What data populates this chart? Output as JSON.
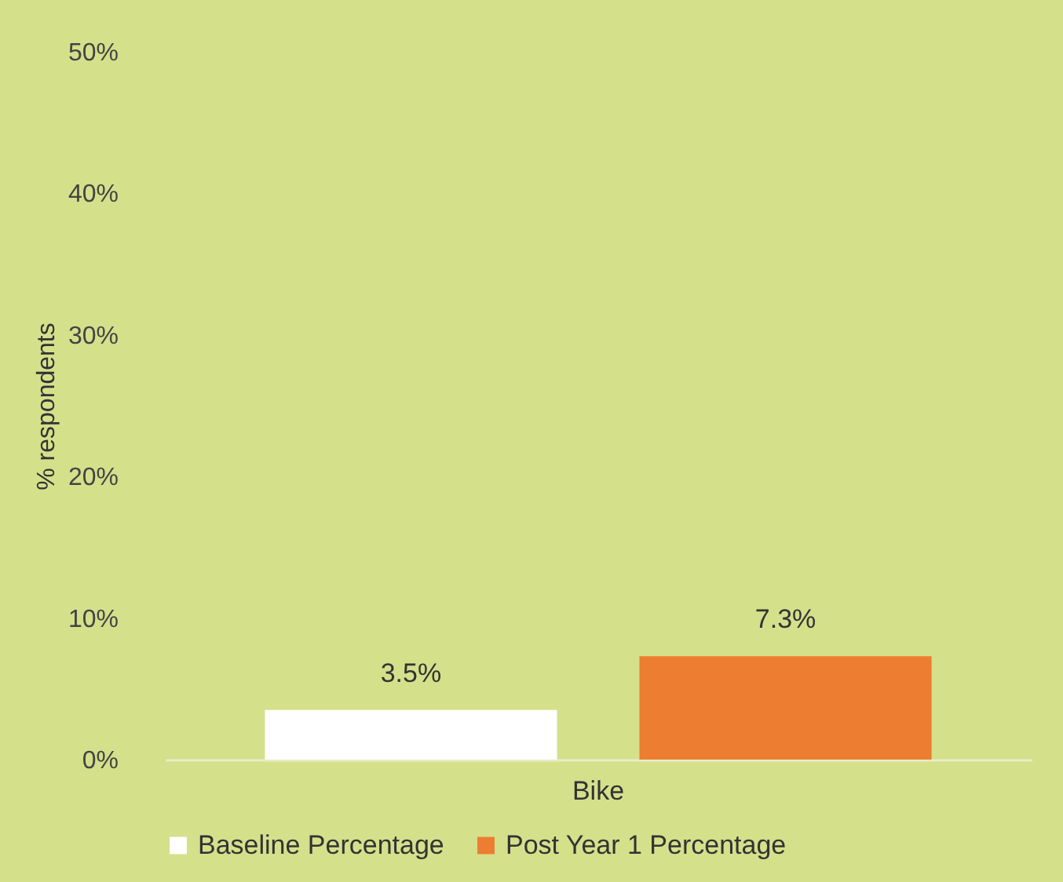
{
  "chart_data": {
    "type": "bar",
    "ylabel": "% respondents",
    "categories": [
      "Bike"
    ],
    "series": [
      {
        "name": "Baseline Percentage",
        "color": "#ffffff",
        "values": [
          3.5
        ],
        "value_labels": [
          "3.5%"
        ]
      },
      {
        "name": "Post Year 1 Percentage",
        "color": "#ed7d31",
        "values": [
          7.3
        ],
        "value_labels": [
          "7.3%"
        ]
      }
    ],
    "ylim": [
      0,
      50
    ],
    "yticks": [
      {
        "value": 0,
        "label": "0%"
      },
      {
        "value": 10,
        "label": "10%"
      },
      {
        "value": 20,
        "label": "20%"
      },
      {
        "value": 30,
        "label": "30%"
      },
      {
        "value": 40,
        "label": "40%"
      },
      {
        "value": 50,
        "label": "50%"
      }
    ],
    "grid": false,
    "legend": "bottom"
  }
}
